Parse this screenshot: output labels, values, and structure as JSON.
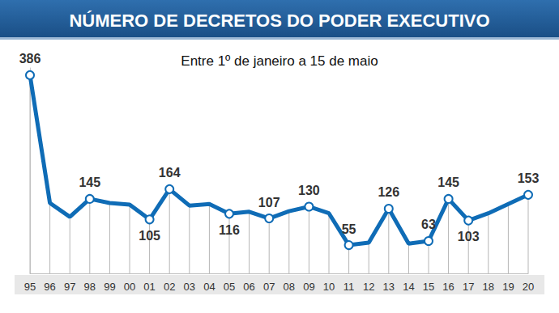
{
  "chart_data": {
    "type": "line",
    "title": "NÚMERO DE DECRETOS DO PODER EXECUTIVO",
    "subtitle": "Entre 1º de janeiro a 15 de maio",
    "categories": [
      "95",
      "96",
      "97",
      "98",
      "99",
      "00",
      "01",
      "02",
      "03",
      "04",
      "05",
      "06",
      "07",
      "08",
      "09",
      "10",
      "11",
      "12",
      "13",
      "14",
      "15",
      "16",
      "17",
      "18",
      "19",
      "20"
    ],
    "values": [
      386,
      137,
      110,
      145,
      137,
      134,
      105,
      164,
      132,
      135,
      116,
      120,
      107,
      121,
      130,
      117,
      55,
      60,
      126,
      58,
      63,
      145,
      103,
      117,
      135,
      153
    ],
    "value_labels": [
      "386",
      null,
      null,
      "145",
      null,
      null,
      "105",
      "164",
      null,
      null,
      "116",
      null,
      "107",
      null,
      "130",
      null,
      "55",
      null,
      "126",
      null,
      "63",
      "145",
      "103",
      null,
      null,
      "153"
    ],
    "color": "#0f6cb6",
    "ylim": [
      0,
      400
    ],
    "yticks": [
      0
    ],
    "tick_labels": "x",
    "grid": false,
    "data_labels": true,
    "marker": "circle"
  }
}
